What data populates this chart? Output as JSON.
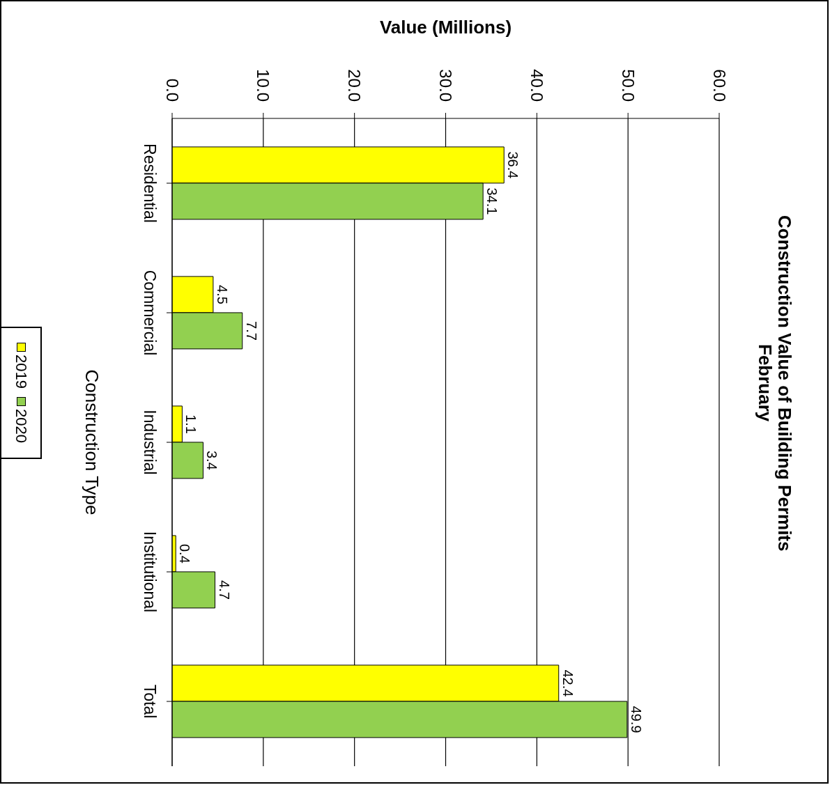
{
  "chart_data": {
    "type": "bar",
    "orientation": "horizontal",
    "title": "Construction Value of Building Permits\nFebruary",
    "xlabel": "Value (Millions)",
    "ylabel": "Construction Type",
    "categories": [
      "Residential",
      "Commercial",
      "Industrial",
      "Institutional",
      "Total"
    ],
    "series": [
      {
        "name": "2019",
        "color": "#ffff00",
        "values": [
          36.4,
          4.5,
          1.1,
          0.4,
          42.4
        ]
      },
      {
        "name": "2020",
        "color": "#92d050",
        "values": [
          34.1,
          7.7,
          3.4,
          4.7,
          49.9
        ]
      }
    ],
    "xlim": [
      0,
      60
    ],
    "xticks": [
      {
        "value": 0,
        "label": "0.0"
      },
      {
        "value": 10,
        "label": "10.0"
      },
      {
        "value": 20,
        "label": "20.0"
      },
      {
        "value": 30,
        "label": "30.0"
      },
      {
        "value": 40,
        "label": "40.0"
      },
      {
        "value": 50,
        "label": "50.0"
      },
      {
        "value": 60,
        "label": "60.0"
      }
    ],
    "grid": "x",
    "legend": "left",
    "data_labels": true
  }
}
